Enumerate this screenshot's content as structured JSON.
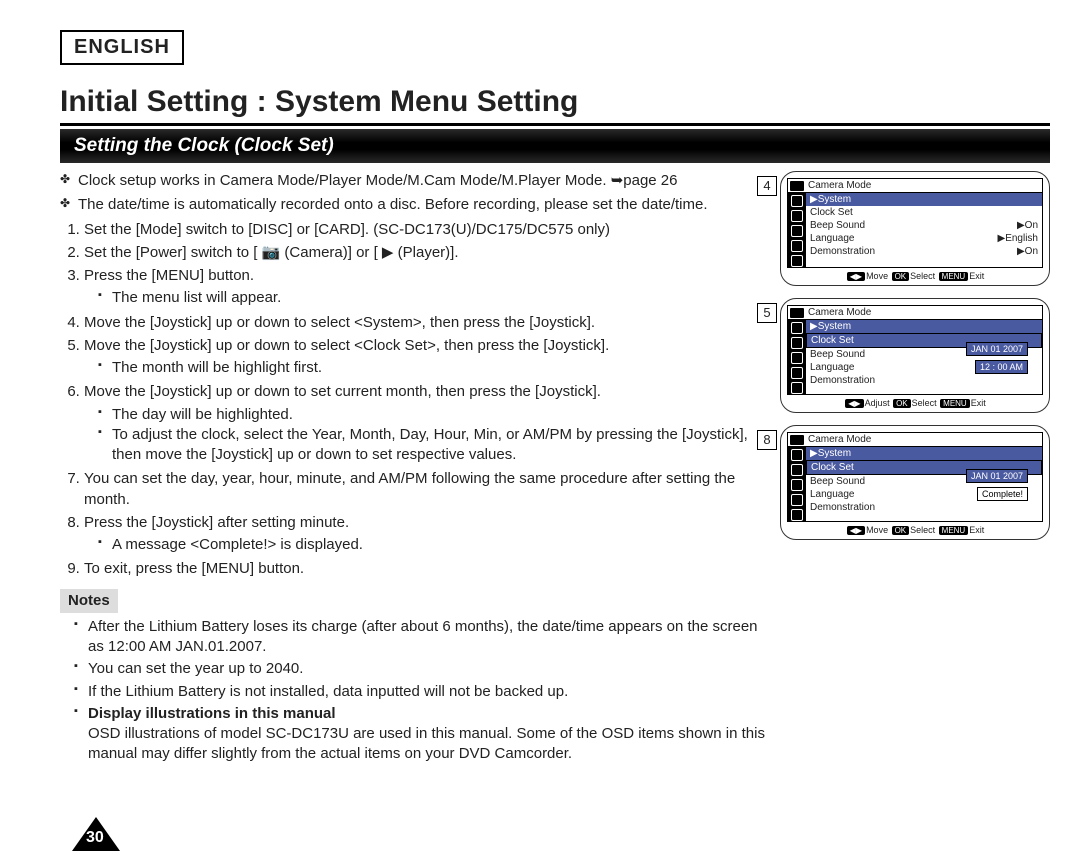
{
  "language_label": "ENGLISH",
  "title": "Initial Setting : System Menu Setting",
  "subtitle": "Setting the Clock (Clock Set)",
  "intro": [
    "Clock setup works in Camera Mode/Player Mode/M.Cam Mode/M.Player Mode. ➥page 26",
    "The date/time is automatically recorded onto a disc. Before recording, please set the date/time."
  ],
  "steps": [
    {
      "text": "Set the [Mode] switch to [DISC] or [CARD]. (SC-DC173(U)/DC175/DC575 only)"
    },
    {
      "text": "Set the [Power] switch to [ 📷 (Camera)] or [ ▶ (Player)]."
    },
    {
      "text": "Press the [MENU] button.",
      "subs": [
        "The menu list will appear."
      ]
    },
    {
      "text": "Move the [Joystick] up or down to select <System>, then press the [Joystick]."
    },
    {
      "text": "Move the [Joystick] up or down to select <Clock Set>, then press the [Joystick].",
      "subs": [
        "The month will be highlight first."
      ]
    },
    {
      "text": "Move the [Joystick] up or down to set current month, then press the [Joystick].",
      "subs": [
        "The day will be highlighted.",
        "To adjust the clock, select the Year, Month, Day, Hour, Min, or AM/PM by pressing the [Joystick], then move the [Joystick] up or down to set respective values."
      ]
    },
    {
      "text": "You can set the day, year, hour, minute, and AM/PM following the same procedure after setting the month."
    },
    {
      "text": "Press the [Joystick] after setting minute.",
      "subs": [
        "A message <Complete!> is displayed."
      ]
    },
    {
      "text": "To exit, press the [MENU] button."
    }
  ],
  "notes_label": "Notes",
  "notes": [
    "After the Lithium Battery loses its charge (after about 6 months), the date/time appears on the screen as 12:00 AM JAN.01.2007.",
    "You can set the year up to 2040.",
    "If the Lithium Battery is not installed, data inputted will not be backed up.",
    "Display illustrations in this manual\nOSD illustrations of model SC-DC173U are used in this manual. Some of the OSD items shown in this manual may differ slightly from the actual items on your DVD Camcorder."
  ],
  "page_number": "30",
  "figures": [
    {
      "num": "4",
      "mode": "Camera Mode",
      "system_label": "▶System",
      "rows": [
        {
          "l": "Clock Set",
          "r": ""
        },
        {
          "l": "Beep Sound",
          "r": "▶On"
        },
        {
          "l": "Language",
          "r": "▶English"
        },
        {
          "l": "Demonstration",
          "r": "▶On"
        }
      ],
      "footer": {
        "k1": "◀▶",
        "t1": "Move",
        "k2": "OK",
        "t2": "Select",
        "k3": "MENU",
        "t3": "Exit"
      }
    },
    {
      "num": "5",
      "mode": "Camera Mode",
      "system_label": "▶System",
      "rows": [
        {
          "l": "Clock Set",
          "r": "",
          "sel": true
        },
        {
          "l": "Beep Sound",
          "r": ""
        },
        {
          "l": "Language",
          "r": ""
        },
        {
          "l": "Demonstration",
          "r": ""
        }
      ],
      "overlay_top": "JAN 01 2007",
      "overlay_bottom": "12 : 00  AM",
      "footer": {
        "k1": "◀▶",
        "t1": "Adjust",
        "k2": "OK",
        "t2": "Select",
        "k3": "MENU",
        "t3": "Exit"
      }
    },
    {
      "num": "8",
      "mode": "Camera Mode",
      "system_label": "▶System",
      "rows": [
        {
          "l": "Clock Set",
          "r": "",
          "sel": true
        },
        {
          "l": "Beep Sound",
          "r": ""
        },
        {
          "l": "Language",
          "r": ""
        },
        {
          "l": "Demonstration",
          "r": ""
        }
      ],
      "overlay_top": "JAN 01 2007",
      "overlay_bottom": "Complete!",
      "footer": {
        "k1": "◀▶",
        "t1": "Move",
        "k2": "OK",
        "t2": "Select",
        "k3": "MENU",
        "t3": "Exit"
      }
    }
  ],
  "colors": {
    "accent": "#4a5aa0",
    "band": "#000",
    "page_bg": "#fff"
  }
}
